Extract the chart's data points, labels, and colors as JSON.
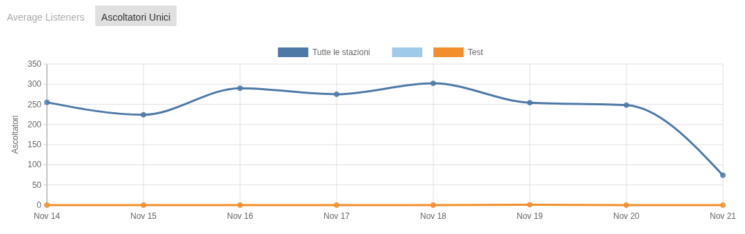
{
  "chart_data": {
    "type": "line",
    "ylabel": "Ascoltatori",
    "annotations": [
      "Average Listeners",
      "Ascoltatori Unici"
    ],
    "categories": [
      "Nov 14",
      "Nov 15",
      "Nov 16",
      "Nov 17",
      "Nov 18",
      "Nov 19",
      "Nov 20",
      "Nov 21"
    ],
    "series": [
      {
        "name": "Tutte le stazioni",
        "color": "#4e79a7",
        "values": [
          255,
          224,
          290,
          275,
          302,
          254,
          248,
          74
        ]
      },
      {
        "color": "#a0cbe8",
        "values": [
          null,
          null,
          null,
          null,
          null,
          null,
          null,
          null
        ]
      },
      {
        "name": "Test",
        "color": "#f28e2b",
        "values": [
          0,
          0,
          0,
          0,
          0,
          1,
          0,
          0
        ]
      }
    ],
    "ylim": [
      0,
      350
    ],
    "yticks": [
      0,
      50,
      100,
      150,
      200,
      250,
      300,
      350
    ],
    "grid": true,
    "legend": "top",
    "marker": "circle",
    "line_style": "solid"
  }
}
